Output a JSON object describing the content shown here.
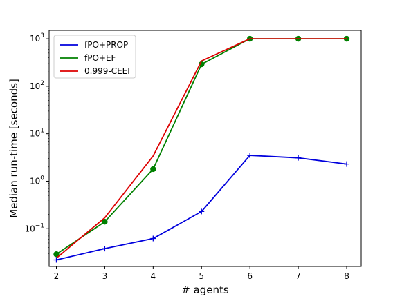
{
  "chart_data": {
    "type": "line",
    "title": "",
    "xlabel": "# agents",
    "ylabel": "Median run-time [seconds]",
    "yscale": "log",
    "x": [
      2,
      3,
      4,
      5,
      6,
      7,
      8
    ],
    "xlim": [
      1.85,
      8.3
    ],
    "ylim": [
      0.016,
      1500
    ],
    "y_ticks": [
      {
        "value": 0.1,
        "base": "10",
        "exp": "−1"
      },
      {
        "value": 1,
        "base": "10",
        "exp": "0"
      },
      {
        "value": 10,
        "base": "10",
        "exp": "1"
      },
      {
        "value": 100,
        "base": "10",
        "exp": "2"
      },
      {
        "value": 1000,
        "base": "10",
        "exp": "3"
      }
    ],
    "grid": false,
    "legend_position": "top-left",
    "series": [
      {
        "name": "fPO+PROP",
        "color": "#0000dd",
        "marker": "plus",
        "values": [
          0.022,
          0.038,
          0.062,
          0.23,
          3.5,
          3.1,
          2.3
        ]
      },
      {
        "name": "fPO+EF",
        "color": "#008000",
        "marker": "circle",
        "values": [
          0.029,
          0.14,
          1.8,
          290,
          1000,
          1000,
          1000
        ]
      },
      {
        "name": "0.999-CEEI",
        "color": "#dd0000",
        "marker": "none",
        "values": [
          0.024,
          0.17,
          3.4,
          340,
          1000,
          1000,
          1000
        ]
      }
    ]
  }
}
